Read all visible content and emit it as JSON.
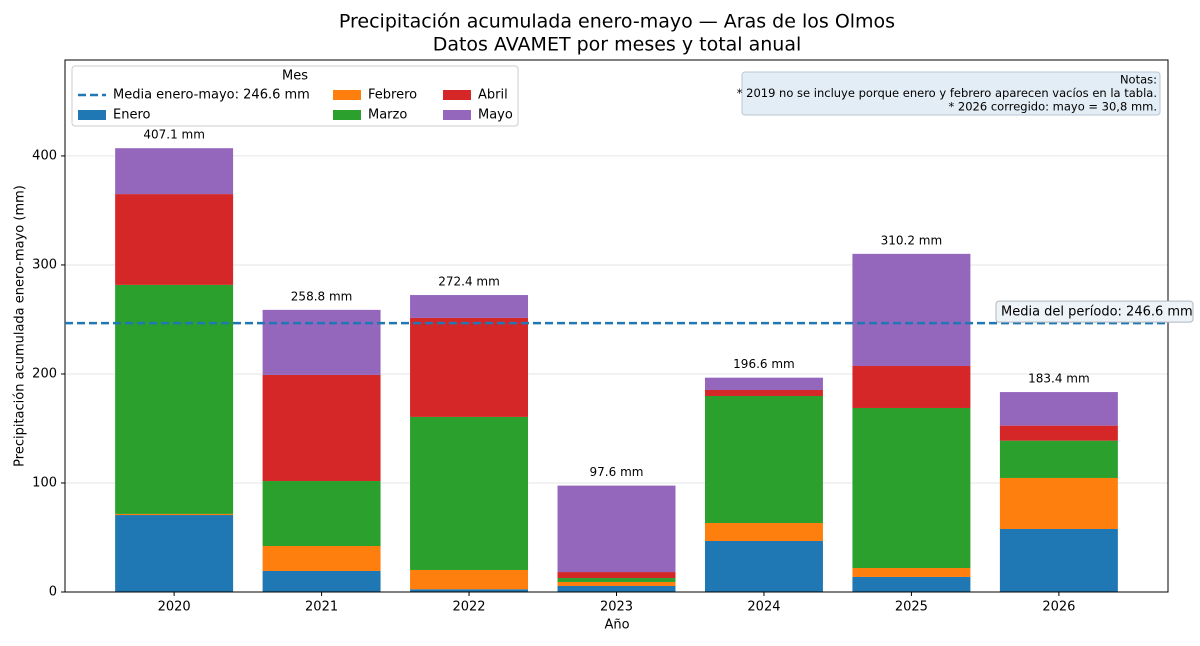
{
  "chart_data": {
    "type": "stacked_bar",
    "title": "Precipitación acumulada enero-mayo — Aras de los Olmos",
    "subtitle": "Datos AVAMET por meses y total anual",
    "x_label": "Año",
    "y_label": "Precipitación acumulada enero-mayo (mm)",
    "categories": [
      "2020",
      "2021",
      "2022",
      "2023",
      "2024",
      "2025",
      "2026"
    ],
    "series": [
      {
        "name": "Enero",
        "color": "#1f77b4",
        "values": [
          70.6,
          19.3,
          2.5,
          5.5,
          46.8,
          13.8,
          57.8
        ]
      },
      {
        "name": "Febrero",
        "color": "#ff7f0e",
        "values": [
          1.0,
          22.9,
          17.7,
          3.7,
          16.5,
          8.2,
          46.8
        ]
      },
      {
        "name": "Marzo",
        "color": "#2ca02c",
        "values": [
          210.1,
          59.6,
          140.4,
          3.6,
          116.5,
          146.8,
          34.2
        ]
      },
      {
        "name": "Abril",
        "color": "#d62728",
        "values": [
          83.3,
          97.3,
          90.8,
          5.5,
          5.5,
          38.5,
          13.8
        ]
      },
      {
        "name": "Mayo",
        "color": "#9467bd",
        "values": [
          42.1,
          59.7,
          21.0,
          79.3,
          11.3,
          102.9,
          30.8
        ]
      }
    ],
    "totals": {
      "values": [
        407.1,
        258.8,
        272.4,
        97.6,
        196.6,
        310.2,
        183.4
      ],
      "value_labels": [
        "407.1 mm",
        "258.8 mm",
        "272.4 mm",
        "97.6 mm",
        "196.6 mm",
        "310.2 mm",
        "183.4 mm"
      ]
    },
    "mean": {
      "value": 246.6,
      "color": "#1f77b4",
      "legend": "Media enero-mayo: 246.6 mm",
      "label": "Media del período: 246.6 mm"
    },
    "legend_title": "Mes",
    "legend_position": "upper left",
    "notes": [
      "Notas:",
      "* 2019 no se incluye porque enero y febrero aparecen vacíos en la tabla.",
      "* 2026 corregido: mayo = 30,8 mm."
    ],
    "ylim": [
      0,
      488
    ],
    "yticks": [
      0,
      100,
      200,
      300,
      400
    ],
    "grid": true
  }
}
